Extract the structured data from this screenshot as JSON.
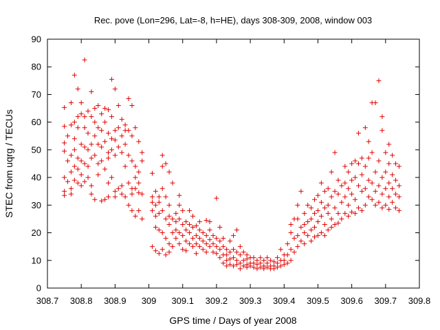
{
  "chart_data": {
    "type": "scatter",
    "title": "Rec. pove (Lon=296, Lat=-8, h=HE), days 308-309, 2008, window 003",
    "xlabel": "GPS time / Days of year 2008",
    "ylabel": "STEC from uqrg / TECUs",
    "xlim": [
      308.7,
      309.8
    ],
    "ylim": [
      0,
      90
    ],
    "x_ticks": [
      "308.7",
      "308.8",
      "308.9",
      "309",
      "309.1",
      "309.2",
      "309.3",
      "309.4",
      "309.5",
      "309.6",
      "309.7",
      "309.8"
    ],
    "y_ticks": [
      "0",
      "10",
      "20",
      "30",
      "40",
      "50",
      "60",
      "70",
      "80",
      "90"
    ],
    "grid": false,
    "marker": "plus",
    "color": "#e00000",
    "points": [
      [
        308.75,
        65.3
      ],
      [
        308.75,
        58.5
      ],
      [
        308.75,
        52.5
      ],
      [
        308.75,
        49.5
      ],
      [
        308.75,
        40.0
      ],
      [
        308.75,
        35.0
      ],
      [
        308.75,
        33.5
      ],
      [
        308.76,
        55.0
      ],
      [
        308.76,
        46.0
      ],
      [
        308.76,
        38.5
      ],
      [
        308.77,
        67.0
      ],
      [
        308.77,
        59.0
      ],
      [
        308.77,
        48.0
      ],
      [
        308.77,
        42.0
      ],
      [
        308.77,
        36.0
      ],
      [
        308.77,
        34.0
      ],
      [
        308.78,
        77.0
      ],
      [
        308.78,
        60.0
      ],
      [
        308.78,
        54.0
      ],
      [
        308.78,
        50.0
      ],
      [
        308.78,
        44.0
      ],
      [
        308.78,
        39.0
      ],
      [
        308.79,
        72.0
      ],
      [
        308.79,
        62.0
      ],
      [
        308.79,
        58.0
      ],
      [
        308.79,
        47.0
      ],
      [
        308.79,
        43.0
      ],
      [
        308.79,
        38.0
      ],
      [
        308.8,
        67.0
      ],
      [
        308.8,
        63.0
      ],
      [
        308.8,
        52.0
      ],
      [
        308.8,
        46.0
      ],
      [
        308.8,
        41.0
      ],
      [
        308.8,
        37.0
      ],
      [
        308.81,
        82.5
      ],
      [
        308.81,
        62.0
      ],
      [
        308.81,
        58.0
      ],
      [
        308.81,
        51.0
      ],
      [
        308.81,
        45.0
      ],
      [
        308.81,
        38.5
      ],
      [
        308.82,
        64.0
      ],
      [
        308.82,
        56.0
      ],
      [
        308.82,
        50.0
      ],
      [
        308.82,
        44.0
      ],
      [
        308.82,
        40.0
      ],
      [
        308.83,
        71.0
      ],
      [
        308.83,
        62.0
      ],
      [
        308.83,
        52.0
      ],
      [
        308.83,
        47.0
      ],
      [
        308.83,
        37.0
      ],
      [
        308.83,
        34.0
      ],
      [
        308.84,
        65.0
      ],
      [
        308.84,
        60.0
      ],
      [
        308.84,
        55.0
      ],
      [
        308.84,
        48.0
      ],
      [
        308.84,
        32.0
      ],
      [
        308.85,
        66.0
      ],
      [
        308.85,
        58.0
      ],
      [
        308.85,
        52.0
      ],
      [
        308.85,
        45.0
      ],
      [
        308.85,
        41.0
      ],
      [
        308.86,
        63.0
      ],
      [
        308.86,
        57.0
      ],
      [
        308.86,
        51.0
      ],
      [
        308.86,
        46.0
      ],
      [
        308.86,
        31.5
      ],
      [
        308.87,
        65.0
      ],
      [
        308.87,
        60.0
      ],
      [
        308.87,
        53.0
      ],
      [
        308.87,
        43.0
      ],
      [
        308.87,
        32.0
      ],
      [
        308.88,
        64.5
      ],
      [
        308.88,
        56.0
      ],
      [
        308.88,
        49.0
      ],
      [
        308.88,
        47.0
      ],
      [
        308.88,
        38.0
      ],
      [
        308.88,
        33.0
      ],
      [
        308.89,
        75.5
      ],
      [
        308.89,
        62.0
      ],
      [
        308.89,
        54.0
      ],
      [
        308.89,
        50.0
      ],
      [
        308.89,
        40.0
      ],
      [
        308.9,
        72.0
      ],
      [
        308.9,
        57.0
      ],
      [
        308.9,
        53.5
      ],
      [
        308.9,
        48.0
      ],
      [
        308.9,
        35.0
      ],
      [
        308.9,
        33.0
      ],
      [
        308.91,
        66.0
      ],
      [
        308.91,
        58.0
      ],
      [
        308.91,
        51.0
      ],
      [
        308.91,
        36.0
      ],
      [
        308.92,
        61.0
      ],
      [
        308.92,
        55.0
      ],
      [
        308.92,
        49.0
      ],
      [
        308.92,
        37.0
      ],
      [
        308.92,
        34.0
      ],
      [
        308.93,
        59.0
      ],
      [
        308.93,
        57.0
      ],
      [
        308.93,
        52.0
      ],
      [
        308.93,
        44.0
      ],
      [
        308.93,
        33.0
      ],
      [
        308.94,
        68.5
      ],
      [
        308.94,
        57.0
      ],
      [
        308.94,
        48.0
      ],
      [
        308.94,
        38.0
      ],
      [
        308.94,
        30.0
      ],
      [
        308.95,
        66.0
      ],
      [
        308.95,
        55.0
      ],
      [
        308.95,
        46.0
      ],
      [
        308.95,
        36.0
      ],
      [
        308.95,
        34.0
      ],
      [
        308.95,
        28.0
      ],
      [
        308.96,
        58.0
      ],
      [
        308.96,
        44.0
      ],
      [
        308.96,
        40.0
      ],
      [
        308.96,
        36.0
      ],
      [
        308.96,
        26.0
      ],
      [
        308.97,
        53.0
      ],
      [
        308.97,
        42.0
      ],
      [
        308.97,
        38.0
      ],
      [
        308.97,
        34.5
      ],
      [
        308.97,
        28.0
      ],
      [
        308.98,
        49.0
      ],
      [
        308.98,
        46.0
      ],
      [
        308.98,
        34.0
      ],
      [
        308.98,
        25.0
      ],
      [
        309.01,
        41.5
      ],
      [
        309.01,
        33.0
      ],
      [
        309.01,
        31.0
      ],
      [
        309.01,
        28.0
      ],
      [
        309.01,
        15.0
      ],
      [
        309.02,
        35.0
      ],
      [
        309.02,
        30.0
      ],
      [
        309.02,
        26.0
      ],
      [
        309.02,
        22.0
      ],
      [
        309.02,
        13.5
      ],
      [
        309.03,
        33.0
      ],
      [
        309.03,
        31.0
      ],
      [
        309.03,
        27.0
      ],
      [
        309.03,
        21.0
      ],
      [
        309.03,
        12.5
      ],
      [
        309.04,
        48.0
      ],
      [
        309.04,
        44.0
      ],
      [
        309.04,
        36.0
      ],
      [
        309.04,
        28.0
      ],
      [
        309.04,
        20.0
      ],
      [
        309.04,
        14.0
      ],
      [
        309.05,
        45.0
      ],
      [
        309.05,
        33.0
      ],
      [
        309.05,
        25.0
      ],
      [
        309.05,
        18.0
      ],
      [
        309.05,
        12.0
      ],
      [
        309.06,
        42.0
      ],
      [
        309.06,
        30.0
      ],
      [
        309.06,
        26.0
      ],
      [
        309.06,
        23.0
      ],
      [
        309.06,
        16.0
      ],
      [
        309.06,
        13.0
      ],
      [
        309.07,
        38.0
      ],
      [
        309.07,
        25.0
      ],
      [
        309.07,
        20.0
      ],
      [
        309.07,
        15.0
      ],
      [
        309.08,
        27.0
      ],
      [
        309.08,
        24.0
      ],
      [
        309.08,
        21.0
      ],
      [
        309.08,
        18.0
      ],
      [
        309.09,
        33.5
      ],
      [
        309.09,
        30.0
      ],
      [
        309.09,
        25.0
      ],
      [
        309.09,
        20.0
      ],
      [
        309.09,
        16.0
      ],
      [
        309.1,
        28.0
      ],
      [
        309.1,
        23.0
      ],
      [
        309.1,
        19.0
      ],
      [
        309.1,
        14.0
      ],
      [
        309.11,
        24.0
      ],
      [
        309.11,
        21.0
      ],
      [
        309.11,
        17.0
      ],
      [
        309.11,
        13.5
      ],
      [
        309.12,
        28.0
      ],
      [
        309.12,
        23.0
      ],
      [
        309.12,
        20.0
      ],
      [
        309.12,
        16.0
      ],
      [
        309.13,
        26.0
      ],
      [
        309.13,
        22.0
      ],
      [
        309.13,
        18.0
      ],
      [
        309.13,
        15.0
      ],
      [
        309.14,
        22.5
      ],
      [
        309.14,
        19.0
      ],
      [
        309.14,
        16.0
      ],
      [
        309.14,
        12.5
      ],
      [
        309.15,
        24.0
      ],
      [
        309.15,
        21.0
      ],
      [
        309.15,
        18.0
      ],
      [
        309.15,
        15.0
      ],
      [
        309.16,
        20.0
      ],
      [
        309.16,
        17.0
      ],
      [
        309.16,
        14.0
      ],
      [
        309.17,
        24.5
      ],
      [
        309.17,
        19.0
      ],
      [
        309.17,
        16.0
      ],
      [
        309.17,
        13.0
      ],
      [
        309.18,
        24.0
      ],
      [
        309.18,
        21.0
      ],
      [
        309.18,
        17.5
      ],
      [
        309.18,
        15.0
      ],
      [
        309.19,
        19.0
      ],
      [
        309.19,
        16.0
      ],
      [
        309.19,
        13.0
      ],
      [
        309.2,
        32.5
      ],
      [
        309.2,
        18.0
      ],
      [
        309.2,
        15.0
      ],
      [
        309.2,
        12.5
      ],
      [
        309.21,
        22.0
      ],
      [
        309.21,
        17.0
      ],
      [
        309.21,
        14.0
      ],
      [
        309.21,
        11.0
      ],
      [
        309.22,
        18.0
      ],
      [
        309.22,
        15.0
      ],
      [
        309.22,
        12.0
      ],
      [
        309.22,
        9.0
      ],
      [
        309.23,
        14.0
      ],
      [
        309.23,
        12.0
      ],
      [
        309.23,
        10.0
      ],
      [
        309.23,
        8.0
      ],
      [
        309.24,
        17.0
      ],
      [
        309.24,
        13.0
      ],
      [
        309.24,
        10.5
      ],
      [
        309.24,
        8.5
      ],
      [
        309.25,
        19.0
      ],
      [
        309.25,
        14.0
      ],
      [
        309.25,
        11.0
      ],
      [
        309.25,
        8.0
      ],
      [
        309.26,
        21.0
      ],
      [
        309.26,
        13.0
      ],
      [
        309.26,
        10.0
      ],
      [
        309.26,
        8.5
      ],
      [
        309.27,
        15.0
      ],
      [
        309.27,
        12.0
      ],
      [
        309.27,
        9.0
      ],
      [
        309.27,
        7.0
      ],
      [
        309.28,
        13.0
      ],
      [
        309.28,
        10.0
      ],
      [
        309.28,
        8.0
      ],
      [
        309.29,
        12.0
      ],
      [
        309.29,
        10.5
      ],
      [
        309.29,
        8.5
      ],
      [
        309.29,
        7.5
      ],
      [
        309.3,
        11.0
      ],
      [
        309.3,
        9.0
      ],
      [
        309.3,
        8.0
      ],
      [
        309.31,
        11.0
      ],
      [
        309.31,
        9.0
      ],
      [
        309.31,
        7.5
      ],
      [
        309.32,
        10.0
      ],
      [
        309.32,
        8.5
      ],
      [
        309.32,
        7.0
      ],
      [
        309.33,
        11.0
      ],
      [
        309.33,
        9.0
      ],
      [
        309.33,
        7.5
      ],
      [
        309.34,
        10.0
      ],
      [
        309.34,
        8.0
      ],
      [
        309.34,
        7.0
      ],
      [
        309.35,
        11.0
      ],
      [
        309.35,
        9.0
      ],
      [
        309.35,
        7.5
      ],
      [
        309.36,
        10.0
      ],
      [
        309.36,
        8.0
      ],
      [
        309.36,
        7.0
      ],
      [
        309.37,
        9.5
      ],
      [
        309.37,
        8.0
      ],
      [
        309.37,
        7.0
      ],
      [
        309.38,
        11.0
      ],
      [
        309.38,
        9.0
      ],
      [
        309.38,
        7.5
      ],
      [
        309.39,
        14.0
      ],
      [
        309.39,
        10.0
      ],
      [
        309.39,
        8.0
      ],
      [
        309.4,
        12.0
      ],
      [
        309.4,
        10.0
      ],
      [
        309.4,
        8.5
      ],
      [
        309.41,
        16.0
      ],
      [
        309.41,
        12.0
      ],
      [
        309.41,
        9.0
      ],
      [
        309.42,
        23.0
      ],
      [
        309.42,
        20.0
      ],
      [
        309.42,
        14.0
      ],
      [
        309.42,
        10.0
      ],
      [
        309.43,
        25.0
      ],
      [
        309.43,
        18.0
      ],
      [
        309.43,
        13.0
      ],
      [
        309.44,
        30.0
      ],
      [
        309.44,
        25.0
      ],
      [
        309.44,
        19.0
      ],
      [
        309.44,
        15.0
      ],
      [
        309.45,
        35.0
      ],
      [
        309.45,
        22.0
      ],
      [
        309.45,
        17.0
      ],
      [
        309.46,
        27.0
      ],
      [
        309.46,
        23.0
      ],
      [
        309.46,
        20.0
      ],
      [
        309.46,
        16.0
      ],
      [
        309.47,
        30.0
      ],
      [
        309.47,
        24.0
      ],
      [
        309.47,
        19.0
      ],
      [
        309.48,
        29.0
      ],
      [
        309.48,
        25.0
      ],
      [
        309.48,
        21.0
      ],
      [
        309.48,
        17.0
      ],
      [
        309.49,
        32.0
      ],
      [
        309.49,
        27.0
      ],
      [
        309.49,
        22.0
      ],
      [
        309.49,
        18.5
      ],
      [
        309.5,
        33.5
      ],
      [
        309.5,
        28.0
      ],
      [
        309.5,
        24.0
      ],
      [
        309.5,
        19.0
      ],
      [
        309.51,
        38.0
      ],
      [
        309.51,
        31.0
      ],
      [
        309.51,
        26.0
      ],
      [
        309.51,
        20.0
      ],
      [
        309.52,
        35.0
      ],
      [
        309.52,
        29.0
      ],
      [
        309.52,
        23.0
      ],
      [
        309.52,
        19.0
      ],
      [
        309.53,
        36.0
      ],
      [
        309.53,
        30.0
      ],
      [
        309.53,
        27.0
      ],
      [
        309.53,
        21.0
      ],
      [
        309.54,
        42.0
      ],
      [
        309.54,
        33.0
      ],
      [
        309.54,
        25.0
      ],
      [
        309.54,
        22.0
      ],
      [
        309.55,
        49.0
      ],
      [
        309.55,
        35.0
      ],
      [
        309.55,
        29.0
      ],
      [
        309.55,
        23.0
      ],
      [
        309.56,
        39.0
      ],
      [
        309.56,
        34.0
      ],
      [
        309.56,
        27.0
      ],
      [
        309.56,
        23.5
      ],
      [
        309.57,
        37.0
      ],
      [
        309.57,
        31.0
      ],
      [
        309.57,
        25.0
      ],
      [
        309.58,
        44.0
      ],
      [
        309.58,
        38.0
      ],
      [
        309.58,
        33.0
      ],
      [
        309.58,
        27.0
      ],
      [
        309.59,
        42.0
      ],
      [
        309.59,
        36.0
      ],
      [
        309.59,
        30.0
      ],
      [
        309.59,
        26.0
      ],
      [
        309.6,
        45.0
      ],
      [
        309.6,
        39.0
      ],
      [
        309.6,
        34.0
      ],
      [
        309.6,
        27.5
      ],
      [
        309.61,
        46.0
      ],
      [
        309.61,
        40.0
      ],
      [
        309.61,
        32.0
      ],
      [
        309.61,
        27.0
      ],
      [
        309.62,
        56.0
      ],
      [
        309.62,
        45.0
      ],
      [
        309.62,
        37.0
      ],
      [
        309.62,
        29.0
      ],
      [
        309.63,
        47.0
      ],
      [
        309.63,
        41.0
      ],
      [
        309.63,
        35.0
      ],
      [
        309.63,
        28.0
      ],
      [
        309.64,
        58.0
      ],
      [
        309.64,
        44.0
      ],
      [
        309.64,
        36.0
      ],
      [
        309.64,
        30.0
      ],
      [
        309.65,
        53.0
      ],
      [
        309.65,
        47.0
      ],
      [
        309.65,
        39.0
      ],
      [
        309.65,
        33.0
      ],
      [
        309.66,
        67.0
      ],
      [
        309.66,
        49.0
      ],
      [
        309.66,
        38.0
      ],
      [
        309.66,
        32.0
      ],
      [
        309.67,
        67.0
      ],
      [
        309.67,
        42.0
      ],
      [
        309.67,
        35.0
      ],
      [
        309.67,
        30.0
      ],
      [
        309.68,
        75.0
      ],
      [
        309.68,
        46.0
      ],
      [
        309.68,
        37.0
      ],
      [
        309.68,
        31.0
      ],
      [
        309.69,
        62.0
      ],
      [
        309.69,
        57.0
      ],
      [
        309.69,
        40.0
      ],
      [
        309.69,
        34.0
      ],
      [
        309.69,
        29.0
      ],
      [
        309.7,
        49.0
      ],
      [
        309.7,
        42.0
      ],
      [
        309.7,
        36.0
      ],
      [
        309.7,
        30.0
      ],
      [
        309.71,
        52.0
      ],
      [
        309.71,
        45.0
      ],
      [
        309.71,
        38.0
      ],
      [
        309.71,
        33.0
      ],
      [
        309.71,
        28.5
      ],
      [
        309.72,
        48.0
      ],
      [
        309.72,
        41.0
      ],
      [
        309.72,
        36.0
      ],
      [
        309.72,
        31.0
      ],
      [
        309.73,
        45.0
      ],
      [
        309.73,
        39.0
      ],
      [
        309.73,
        34.0
      ],
      [
        309.73,
        29.0
      ],
      [
        309.74,
        44.0
      ],
      [
        309.74,
        37.0
      ],
      [
        309.74,
        33.0
      ],
      [
        309.74,
        28.0
      ]
    ]
  }
}
